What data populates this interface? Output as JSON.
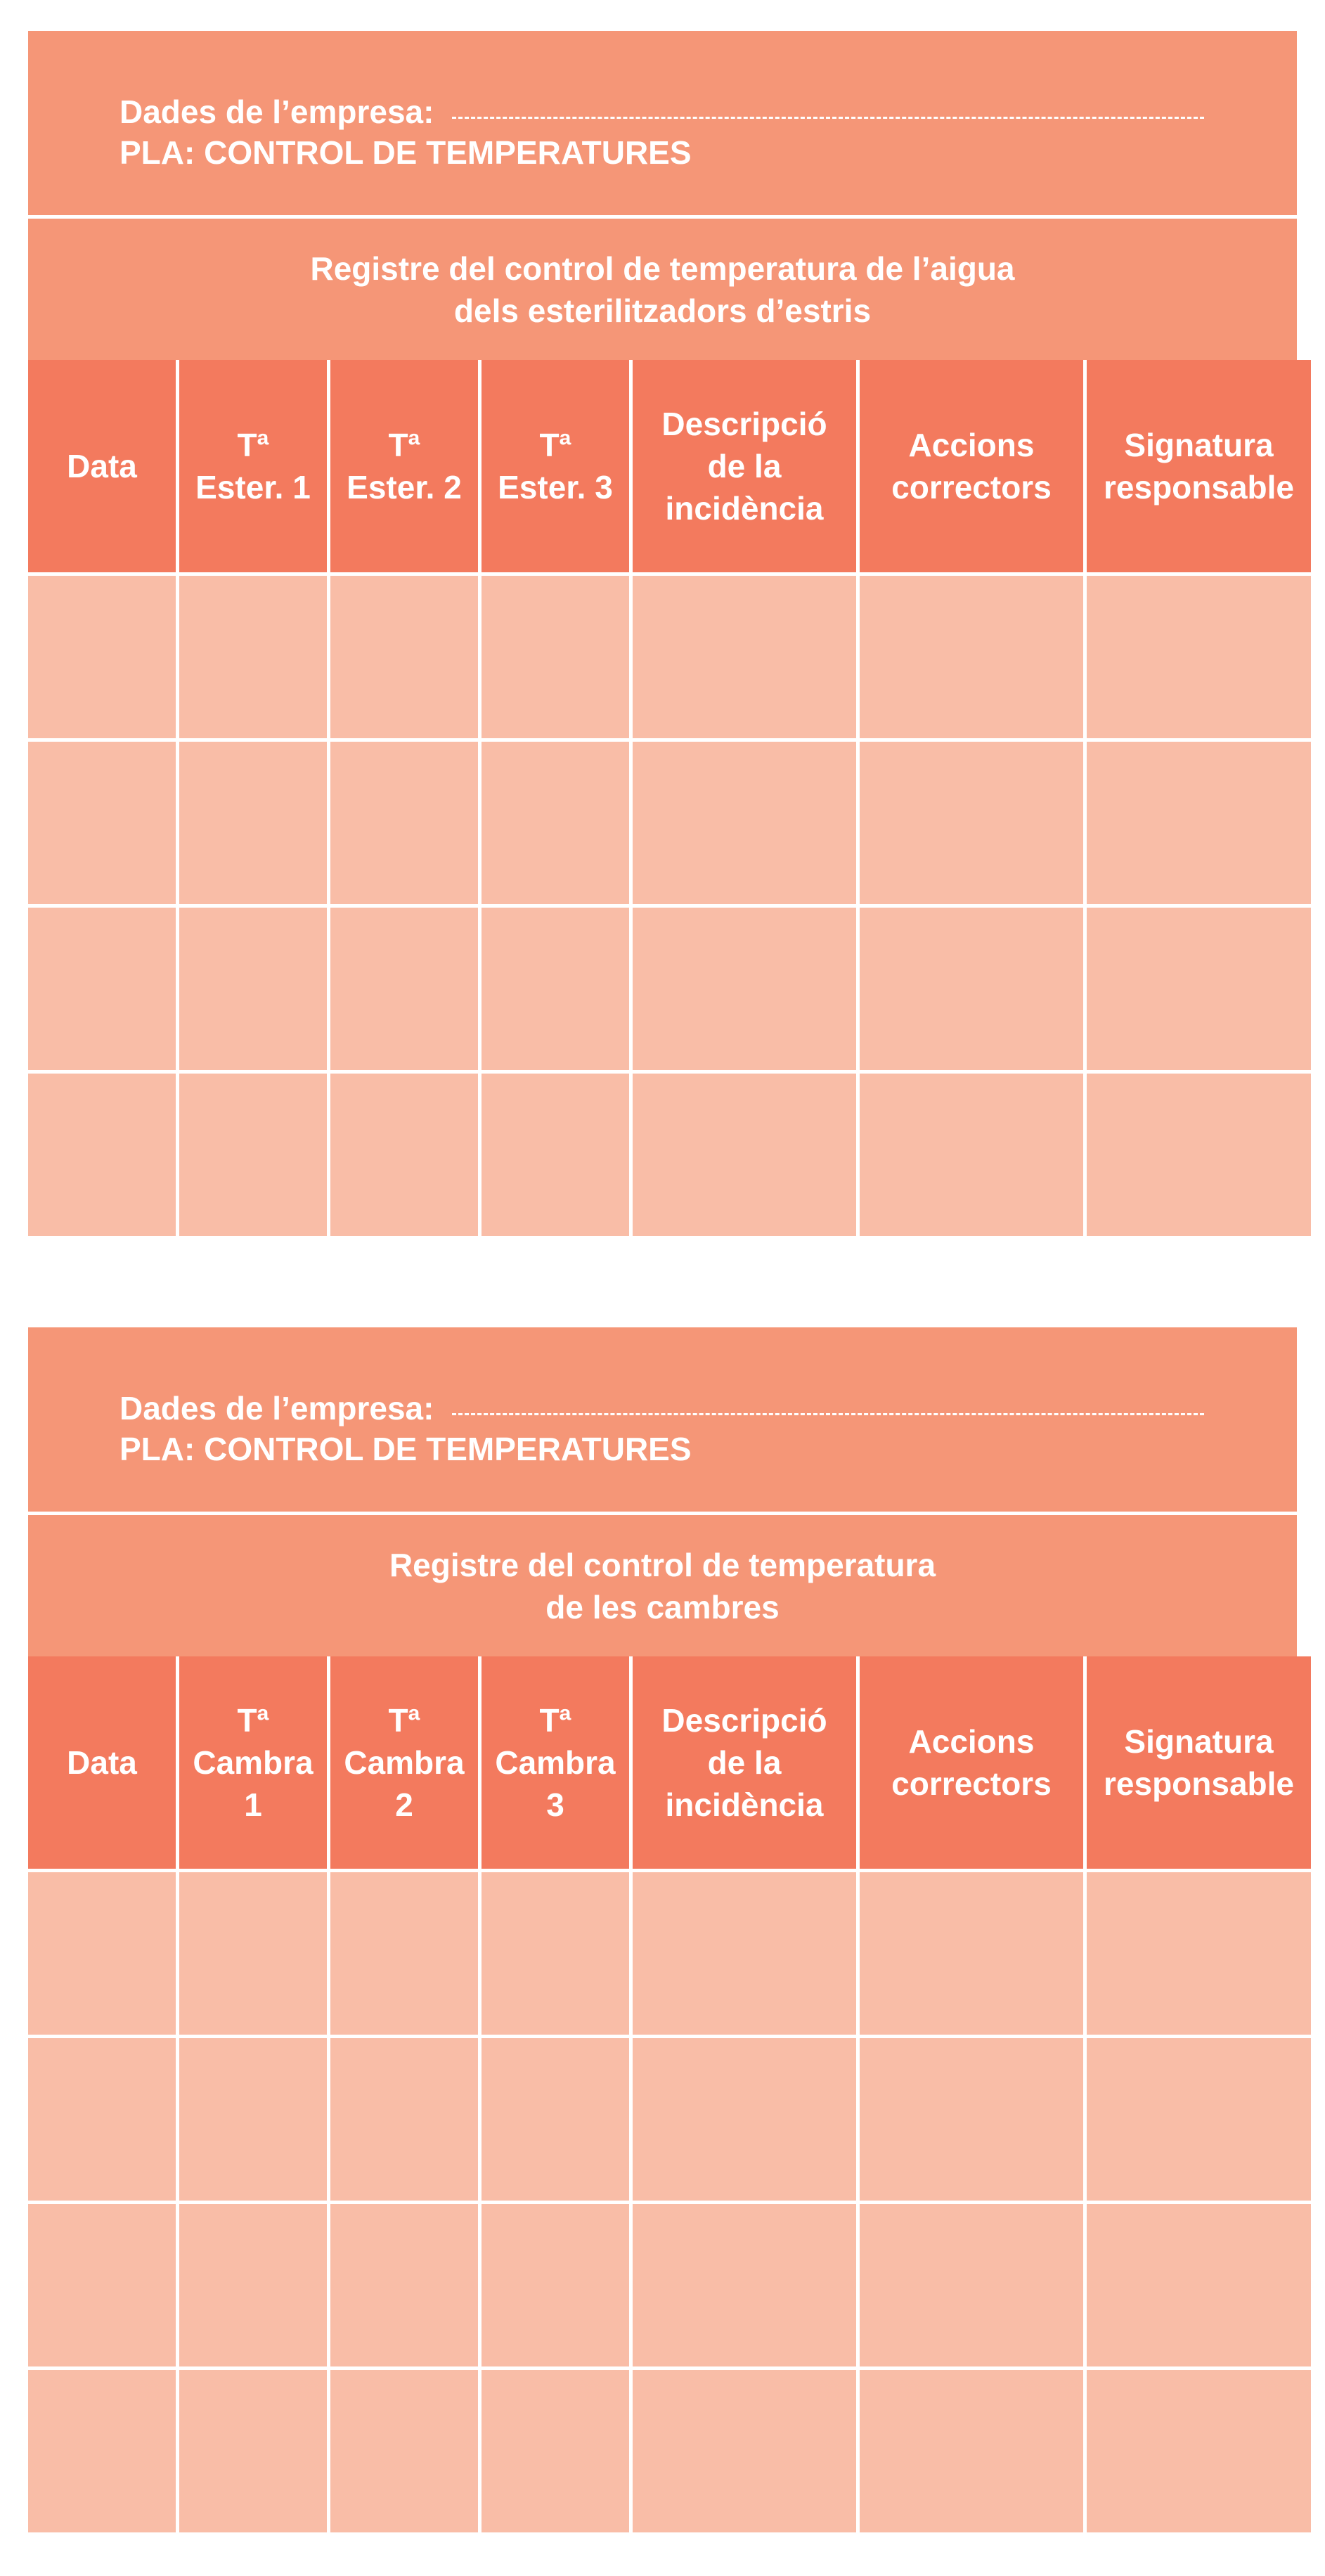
{
  "forms": [
    {
      "company_label": "Dades de l’empresa:",
      "plan_label": "PLA: CONTROL DE TEMPERATURES",
      "title_lines": [
        "Registre del control de temperatura de l’aigua",
        "dels esterilitzadors d’estris"
      ],
      "columns": [
        [
          "Data"
        ],
        [
          "Tª",
          "Ester. 1"
        ],
        [
          "Tª",
          "Ester. 2"
        ],
        [
          "Tª",
          "Ester. 3"
        ],
        [
          "Descripció",
          "de la",
          "incidència"
        ],
        [
          "Accions",
          "correctors"
        ],
        [
          "Signatura",
          "responsable"
        ]
      ]
    },
    {
      "company_label": "Dades de l’empresa:",
      "plan_label": "PLA: CONTROL DE TEMPERATURES",
      "title_lines": [
        "Registre del control de temperatura",
        "de les cambres"
      ],
      "columns": [
        [
          "Data"
        ],
        [
          "Tª",
          "Cambra",
          "1"
        ],
        [
          "Tª",
          "Cambra",
          "2"
        ],
        [
          "Tª",
          "Cambra",
          "3"
        ],
        [
          "Descripció",
          "de la",
          "incidència"
        ],
        [
          "Accions",
          "correctors"
        ],
        [
          "Signatura",
          "responsable"
        ]
      ]
    }
  ],
  "colors": {
    "header_band": "#f59677",
    "column_header": "#f37a5e",
    "data_cell": "#f9bda7"
  }
}
